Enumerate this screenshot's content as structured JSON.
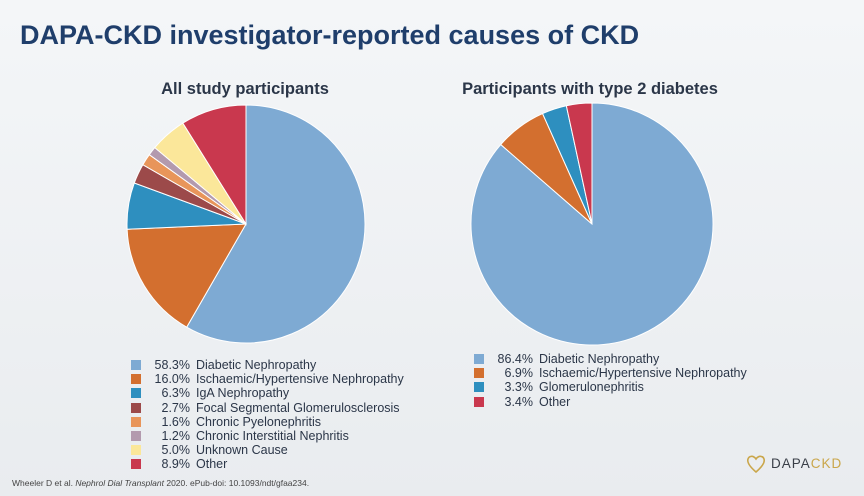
{
  "title": "DAPA-CKD investigator-reported causes of CKD",
  "footnote": {
    "prefix": "Wheeler D et al. ",
    "journal": "Nephrol Dial Transplant",
    "suffix": " 2020. ePub-doi: 10.1093/ndt/gfaa234."
  },
  "logo": {
    "text_main": "DAPA",
    "text_accent": "CKD"
  },
  "chart_data": [
    {
      "type": "pie",
      "title": "All study participants",
      "slices": [
        {
          "label": "Diabetic Nephropathy",
          "pct_label": "58.3%",
          "value": 58.3,
          "color": "#7eaad3"
        },
        {
          "label": "Ischaemic/Hypertensive Nephropathy",
          "pct_label": "16.0%",
          "value": 16.0,
          "color": "#d36f2f"
        },
        {
          "label": "IgA Nephropathy",
          "pct_label": "6.3%",
          "value": 6.3,
          "color": "#2e8fbf"
        },
        {
          "label": "Focal Segmental Glomerulosclerosis",
          "pct_label": "2.7%",
          "value": 2.7,
          "color": "#9c4a4a"
        },
        {
          "label": "Chronic Pyelonephritis",
          "pct_label": "1.6%",
          "value": 1.6,
          "color": "#e8955a"
        },
        {
          "label": "Chronic Interstitial Nephritis",
          "pct_label": "1.2%",
          "value": 1.2,
          "color": "#b39aae"
        },
        {
          "label": "Unknown Cause",
          "pct_label": "5.0%",
          "value": 5.0,
          "color": "#fbe79a"
        },
        {
          "label": "Other",
          "pct_label": "8.9%",
          "value": 8.9,
          "color": "#c9384e"
        }
      ]
    },
    {
      "type": "pie",
      "title": "Participants with type 2 diabetes",
      "slices": [
        {
          "label": "Diabetic Nephropathy",
          "pct_label": "86.4%",
          "value": 86.4,
          "color": "#7eaad3"
        },
        {
          "label": "Ischaemic/Hypertensive Nephropathy",
          "pct_label": "6.9%",
          "value": 6.9,
          "color": "#d36f2f"
        },
        {
          "label": "Glomerulonephritis",
          "pct_label": "3.3%",
          "value": 3.3,
          "color": "#2e8fbf"
        },
        {
          "label": "Other",
          "pct_label": "3.4%",
          "value": 3.4,
          "color": "#c9384e"
        }
      ]
    }
  ]
}
